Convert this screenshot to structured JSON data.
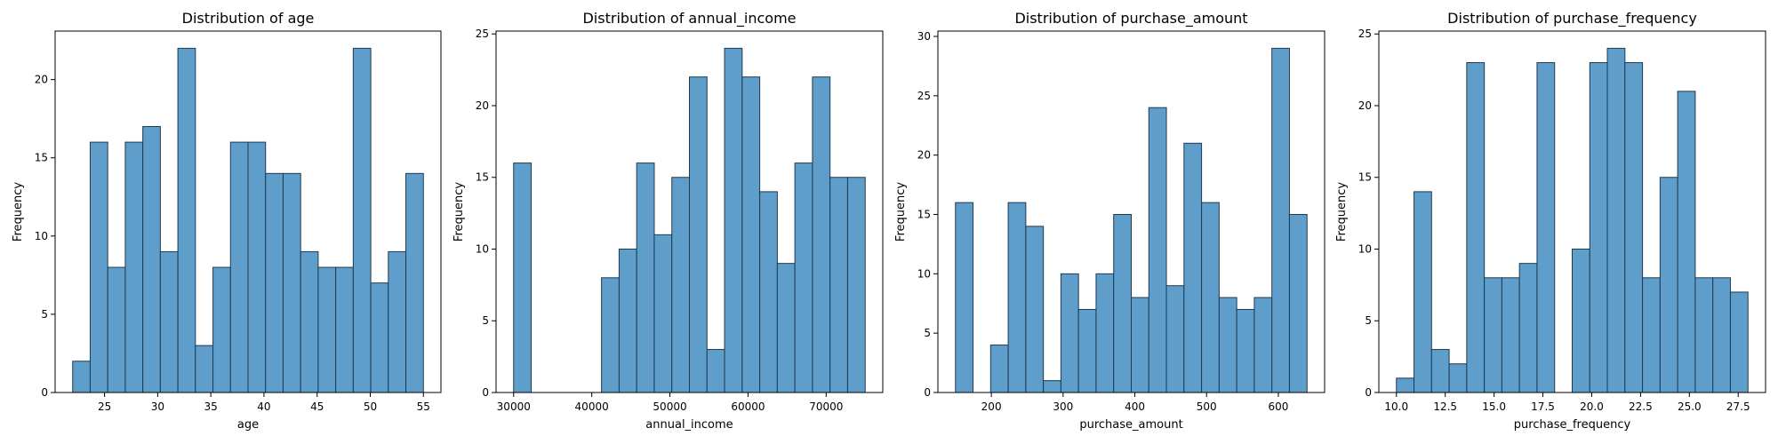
{
  "chart_data": [
    {
      "type": "bar",
      "title": "Distribution of age",
      "xlabel": "age",
      "ylabel": "Frequency",
      "xlim": [
        20.35,
        56.65
      ],
      "ylim": [
        0,
        23.1
      ],
      "xticks": [
        25,
        30,
        35,
        40,
        45,
        50,
        55
      ],
      "xtick_labels": [
        "25",
        "30",
        "35",
        "40",
        "45",
        "50",
        "55"
      ],
      "yticks": [
        0,
        5,
        10,
        15,
        20
      ],
      "ytick_labels": [
        "0",
        "5",
        "10",
        "15",
        "20"
      ],
      "bin_edges": [
        22,
        23.65,
        25.3,
        26.95,
        28.6,
        30.25,
        31.9,
        33.55,
        35.2,
        36.85,
        38.5,
        40.15,
        41.8,
        43.45,
        45.1,
        46.75,
        48.4,
        50.05,
        51.7,
        53.35,
        55
      ],
      "values": [
        2,
        16,
        8,
        16,
        17,
        9,
        22,
        3,
        8,
        16,
        16,
        14,
        14,
        9,
        8,
        8,
        22,
        7,
        9,
        14
      ],
      "grid": false,
      "color": "#5f9ecb",
      "edge_color": "#1f3a4f"
    },
    {
      "type": "bar",
      "title": "Distribution of annual_income",
      "xlabel": "annual_income",
      "ylabel": "Frequency",
      "xlim": [
        27750,
        77250
      ],
      "ylim": [
        0,
        25.2
      ],
      "xticks": [
        30000,
        40000,
        50000,
        60000,
        70000
      ],
      "xtick_labels": [
        "30000",
        "40000",
        "50000",
        "60000",
        "70000"
      ],
      "yticks": [
        0,
        5,
        10,
        15,
        20,
        25
      ],
      "ytick_labels": [
        "0",
        "5",
        "10",
        "15",
        "20",
        "25"
      ],
      "bin_edges": [
        30000,
        32250,
        34500,
        36750,
        39000,
        41250,
        43500,
        45750,
        48000,
        50250,
        52500,
        54750,
        57000,
        59250,
        61500,
        63750,
        66000,
        68250,
        70500,
        72750,
        75000
      ],
      "values": [
        16,
        0,
        0,
        0,
        0,
        8,
        10,
        16,
        11,
        15,
        22,
        3,
        24,
        22,
        14,
        9,
        16,
        22,
        15,
        15
      ],
      "grid": false,
      "color": "#5f9ecb",
      "edge_color": "#1f3a4f"
    },
    {
      "type": "bar",
      "title": "Distribution of purchase_amount",
      "xlabel": "purchase_amount",
      "ylabel": "Frequency",
      "xlim": [
        125.5,
        664.5
      ],
      "ylim": [
        0,
        30.45
      ],
      "xticks": [
        200,
        300,
        400,
        500,
        600
      ],
      "xtick_labels": [
        "200",
        "300",
        "400",
        "500",
        "600"
      ],
      "yticks": [
        0,
        5,
        10,
        15,
        20,
        25,
        30
      ],
      "ytick_labels": [
        "0",
        "5",
        "10",
        "15",
        "20",
        "25",
        "30"
      ],
      "bin_edges": [
        150,
        174.5,
        199,
        223.5,
        248,
        272.5,
        297,
        321.5,
        346,
        370.5,
        395,
        419.5,
        444,
        468.5,
        493,
        517.5,
        542,
        566.5,
        591,
        615.5,
        640
      ],
      "values": [
        16,
        0,
        4,
        16,
        14,
        1,
        10,
        7,
        10,
        15,
        8,
        24,
        9,
        21,
        16,
        8,
        7,
        8,
        29,
        15
      ],
      "grid": false,
      "color": "#5f9ecb",
      "edge_color": "#1f3a4f"
    },
    {
      "type": "bar",
      "title": "Distribution of purchase_frequency",
      "xlabel": "purchase_frequency",
      "ylabel": "Frequency",
      "xlim": [
        9.1,
        28.9
      ],
      "ylim": [
        0,
        25.2
      ],
      "xticks": [
        10.0,
        12.5,
        15.0,
        17.5,
        20.0,
        22.5,
        25.0,
        27.5
      ],
      "xtick_labels": [
        "10.0",
        "12.5",
        "15.0",
        "17.5",
        "20.0",
        "22.5",
        "25.0",
        "27.5"
      ],
      "yticks": [
        0,
        5,
        10,
        15,
        20,
        25
      ],
      "ytick_labels": [
        "0",
        "5",
        "10",
        "15",
        "20",
        "25"
      ],
      "bin_edges": [
        10,
        10.9,
        11.8,
        12.7,
        13.6,
        14.5,
        15.4,
        16.3,
        17.2,
        18.1,
        19,
        19.9,
        20.8,
        21.7,
        22.6,
        23.5,
        24.4,
        25.3,
        26.2,
        27.1,
        28
      ],
      "values": [
        1,
        14,
        3,
        2,
        23,
        8,
        8,
        9,
        23,
        0,
        10,
        23,
        24,
        23,
        8,
        15,
        21,
        8,
        8,
        7
      ],
      "grid": false,
      "color": "#5f9ecb",
      "edge_color": "#1f3a4f"
    }
  ]
}
